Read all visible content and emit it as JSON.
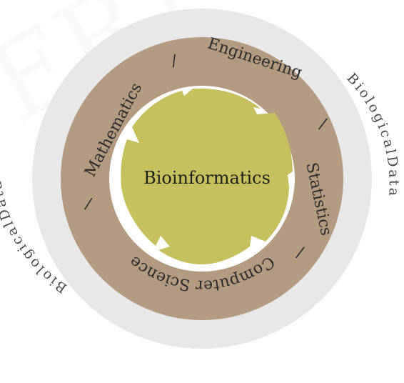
{
  "diagram": {
    "center_label": "Bioinformatics",
    "ring_labels": {
      "mathematics": "Mathematics",
      "engineering": "Engineering",
      "statistics": "Statistics",
      "computer_science": "Computer Science"
    },
    "separator": "/",
    "outer_labels": {
      "left": "BiologicalData",
      "right": "BiologicalData"
    }
  },
  "colors": {
    "outer_disc": "#e8e8e8",
    "ring": "#b49a7f",
    "inner_border": "#ffffff",
    "center_fill": "#c6c05f"
  }
}
